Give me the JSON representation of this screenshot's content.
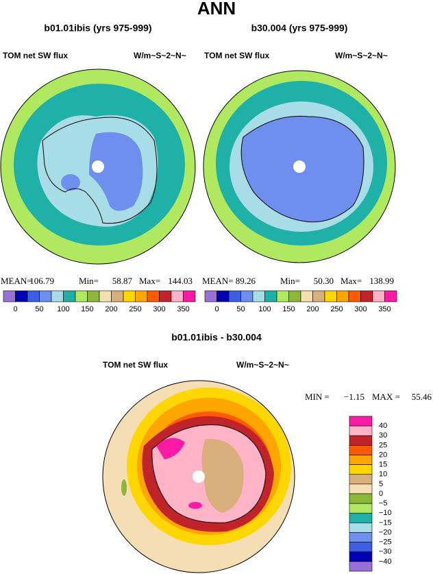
{
  "title": "ANN",
  "panels": [
    {
      "title": "b01.01ibis (yrs 975-999)",
      "variable": "TOM net SW flux",
      "units": "W/m~S~2~N~",
      "stats": [
        {
          "label": "MEAN=",
          "value": "106.79"
        },
        {
          "label": "Min=",
          "value": "58.87"
        },
        {
          "label": "Max=",
          "value": "144.03"
        }
      ],
      "colorbar": {
        "colors": [
          "#9b6fd8",
          "#0000b4",
          "#3b5fe0",
          "#6f8fef",
          "#a8dce6",
          "#1fb0a8",
          "#b0e860",
          "#8cb83a",
          "#f5deb3",
          "#d9b07c",
          "#ffd700",
          "#ffa500",
          "#ff5a00",
          "#c0242a",
          "#ffb3c6",
          "#ff1aa6"
        ],
        "labels": [
          "0",
          "50",
          "100",
          "150",
          "200",
          "250",
          "300",
          "350"
        ]
      }
    },
    {
      "title": "b30.004 (yrs 975-999)",
      "variable": "TOM net SW flux",
      "units": "W/m~S~2~N~",
      "stats": [
        {
          "label": "MEAN=",
          "value": "89.26"
        },
        {
          "label": "Min=",
          "value": "50.30"
        },
        {
          "label": "Max=",
          "value": "138.99"
        }
      ],
      "colorbar": {
        "colors": [
          "#9b6fd8",
          "#0000b4",
          "#3b5fe0",
          "#6f8fef",
          "#a8dce6",
          "#1fb0a8",
          "#b0e860",
          "#8cb83a",
          "#f5deb3",
          "#d9b07c",
          "#ffd700",
          "#ffa500",
          "#ff5a00",
          "#c0242a",
          "#ffb3c6",
          "#ff1aa6"
        ],
        "labels": [
          "0",
          "50",
          "100",
          "150",
          "200",
          "250",
          "300",
          "350"
        ]
      }
    }
  ],
  "difference": {
    "title": "b01.01ibis - b30.004",
    "variable": "TOM net SW flux",
    "units": "W/m~S~2~N~",
    "stats": [
      {
        "label": "MIN =",
        "value": "−1.15"
      },
      {
        "label": "MAX =",
        "value": "55.46"
      }
    ],
    "colorbar": {
      "colors": [
        "#ff1aa6",
        "#ffb3c6",
        "#c0242a",
        "#ff5a00",
        "#ffa500",
        "#ffd700",
        "#d9b07c",
        "#f5deb3",
        "#8cb83a",
        "#b0e860",
        "#1fb0a8",
        "#a8dce6",
        "#6f8fef",
        "#3b5fe0",
        "#0000b4",
        "#9b6fd8"
      ],
      "labels": [
        "40",
        "30",
        "25",
        "20",
        "15",
        "10",
        "5",
        "0",
        "−5",
        "−10",
        "−15",
        "−20",
        "−25",
        "−30",
        "−40"
      ]
    }
  }
}
